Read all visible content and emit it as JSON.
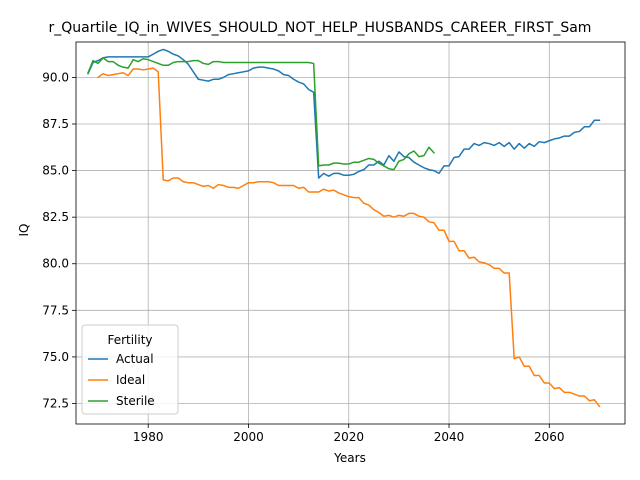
{
  "chart_data": {
    "type": "line",
    "title": "r_Quartile_IQ_in_WIVES_SHOULD_NOT_HELP_HUSBANDS_CAREER_FIRST_Sam",
    "xlabel": "Years",
    "ylabel": "IQ",
    "xlim": [
      1965.6,
      2075.1
    ],
    "ylim": [
      71.4,
      91.9
    ],
    "xticks": [
      1980,
      2000,
      2020,
      2040,
      2060
    ],
    "yticks": [
      72.5,
      75.0,
      77.5,
      80.0,
      82.5,
      85.0,
      87.5,
      90.0
    ],
    "xtick_labels": [
      "1980",
      "2000",
      "2020",
      "2040",
      "2060"
    ],
    "ytick_labels": [
      "72.5",
      "75.0",
      "77.5",
      "80.0",
      "82.5",
      "85.0",
      "87.5",
      "90.0"
    ],
    "grid": true,
    "legend": {
      "title": "Fertility",
      "placement": "lower-left",
      "entries": [
        "Actual",
        "Ideal",
        "Sterile"
      ]
    },
    "series": [
      {
        "name": "Actual",
        "color": "#1f77b4",
        "points": [
          [
            1968,
            90.2
          ],
          [
            1969,
            90.8
          ],
          [
            1970,
            90.9
          ],
          [
            1971,
            91.05
          ],
          [
            1972,
            91.1
          ],
          [
            1973,
            91.1
          ],
          [
            1974,
            91.1
          ],
          [
            1975,
            91.1
          ],
          [
            1976,
            91.1
          ],
          [
            1977,
            91.1
          ],
          [
            1978,
            91.1
          ],
          [
            1979,
            91.1
          ],
          [
            1980,
            91.1
          ],
          [
            1981,
            91.25
          ],
          [
            1982,
            91.4
          ],
          [
            1983,
            91.5
          ],
          [
            1984,
            91.4
          ],
          [
            1985,
            91.25
          ],
          [
            1986,
            91.15
          ],
          [
            1987,
            90.95
          ],
          [
            1988,
            90.7
          ],
          [
            1989,
            90.3
          ],
          [
            1990,
            89.9
          ],
          [
            1991,
            89.85
          ],
          [
            1992,
            89.8
          ],
          [
            1993,
            89.9
          ],
          [
            1994,
            89.9
          ],
          [
            1995,
            90.0
          ],
          [
            1996,
            90.15
          ],
          [
            1997,
            90.2
          ],
          [
            1998,
            90.25
          ],
          [
            1999,
            90.3
          ],
          [
            2000,
            90.35
          ],
          [
            2001,
            90.5
          ],
          [
            2002,
            90.55
          ],
          [
            2003,
            90.55
          ],
          [
            2004,
            90.5
          ],
          [
            2005,
            90.45
          ],
          [
            2006,
            90.35
          ],
          [
            2007,
            90.15
          ],
          [
            2008,
            90.1
          ],
          [
            2009,
            89.9
          ],
          [
            2010,
            89.75
          ],
          [
            2011,
            89.65
          ],
          [
            2012,
            89.35
          ],
          [
            2013,
            89.2
          ],
          [
            2014,
            84.6
          ],
          [
            2015,
            84.85
          ],
          [
            2016,
            84.7
          ],
          [
            2017,
            84.85
          ],
          [
            2018,
            84.85
          ],
          [
            2019,
            84.75
          ],
          [
            2020,
            84.75
          ],
          [
            2021,
            84.8
          ],
          [
            2022,
            84.95
          ],
          [
            2023,
            85.05
          ],
          [
            2024,
            85.3
          ],
          [
            2025,
            85.3
          ],
          [
            2026,
            85.5
          ],
          [
            2027,
            85.3
          ],
          [
            2028,
            85.8
          ],
          [
            2029,
            85.5
          ],
          [
            2030,
            86.0
          ],
          [
            2031,
            85.75
          ],
          [
            2032,
            85.7
          ],
          [
            2033,
            85.45
          ],
          [
            2034,
            85.3
          ],
          [
            2035,
            85.15
          ],
          [
            2036,
            85.05
          ],
          [
            2037,
            85.0
          ],
          [
            2038,
            84.85
          ],
          [
            2039,
            85.25
          ],
          [
            2040,
            85.25
          ],
          [
            2041,
            85.7
          ],
          [
            2042,
            85.75
          ],
          [
            2043,
            86.15
          ],
          [
            2044,
            86.15
          ],
          [
            2045,
            86.45
          ],
          [
            2046,
            86.35
          ],
          [
            2047,
            86.5
          ],
          [
            2048,
            86.45
          ],
          [
            2049,
            86.35
          ],
          [
            2050,
            86.5
          ],
          [
            2051,
            86.3
          ],
          [
            2052,
            86.5
          ],
          [
            2053,
            86.15
          ],
          [
            2054,
            86.45
          ],
          [
            2055,
            86.2
          ],
          [
            2056,
            86.45
          ],
          [
            2057,
            86.3
          ],
          [
            2058,
            86.55
          ],
          [
            2059,
            86.5
          ],
          [
            2060,
            86.6
          ],
          [
            2061,
            86.7
          ],
          [
            2062,
            86.75
          ],
          [
            2063,
            86.85
          ],
          [
            2064,
            86.85
          ],
          [
            2065,
            87.05
          ],
          [
            2066,
            87.1
          ],
          [
            2067,
            87.35
          ],
          [
            2068,
            87.35
          ],
          [
            2069,
            87.7
          ],
          [
            2070,
            87.7
          ]
        ]
      },
      {
        "name": "Ideal",
        "color": "#ff7f0e",
        "points": [
          [
            1970,
            90.0
          ],
          [
            1971,
            90.2
          ],
          [
            1972,
            90.1
          ],
          [
            1973,
            90.15
          ],
          [
            1974,
            90.2
          ],
          [
            1975,
            90.25
          ],
          [
            1976,
            90.1
          ],
          [
            1977,
            90.45
          ],
          [
            1978,
            90.45
          ],
          [
            1979,
            90.4
          ],
          [
            1980,
            90.45
          ],
          [
            1981,
            90.5
          ],
          [
            1982,
            90.3
          ],
          [
            1983,
            84.5
          ],
          [
            1984,
            84.45
          ],
          [
            1985,
            84.6
          ],
          [
            1986,
            84.6
          ],
          [
            1987,
            84.4
          ],
          [
            1988,
            84.35
          ],
          [
            1989,
            84.35
          ],
          [
            1990,
            84.25
          ],
          [
            1991,
            84.15
          ],
          [
            1992,
            84.2
          ],
          [
            1993,
            84.05
          ],
          [
            1994,
            84.25
          ],
          [
            1995,
            84.2
          ],
          [
            1996,
            84.1
          ],
          [
            1997,
            84.1
          ],
          [
            1998,
            84.05
          ],
          [
            1999,
            84.2
          ],
          [
            2000,
            84.35
          ],
          [
            2001,
            84.35
          ],
          [
            2002,
            84.4
          ],
          [
            2003,
            84.4
          ],
          [
            2004,
            84.4
          ],
          [
            2005,
            84.35
          ],
          [
            2006,
            84.2
          ],
          [
            2007,
            84.2
          ],
          [
            2008,
            84.2
          ],
          [
            2009,
            84.2
          ],
          [
            2010,
            84.05
          ],
          [
            2011,
            84.1
          ],
          [
            2012,
            83.85
          ],
          [
            2013,
            83.85
          ],
          [
            2014,
            83.85
          ],
          [
            2015,
            84.0
          ],
          [
            2016,
            83.9
          ],
          [
            2017,
            83.95
          ],
          [
            2018,
            83.8
          ],
          [
            2019,
            83.7
          ],
          [
            2020,
            83.6
          ],
          [
            2021,
            83.55
          ],
          [
            2022,
            83.55
          ],
          [
            2023,
            83.25
          ],
          [
            2024,
            83.15
          ],
          [
            2025,
            82.9
          ],
          [
            2026,
            82.75
          ],
          [
            2027,
            82.55
          ],
          [
            2028,
            82.6
          ],
          [
            2029,
            82.5
          ],
          [
            2030,
            82.6
          ],
          [
            2031,
            82.55
          ],
          [
            2032,
            82.7
          ],
          [
            2033,
            82.7
          ],
          [
            2034,
            82.55
          ],
          [
            2035,
            82.5
          ],
          [
            2036,
            82.25
          ],
          [
            2037,
            82.2
          ],
          [
            2038,
            81.8
          ],
          [
            2039,
            81.8
          ],
          [
            2040,
            81.2
          ],
          [
            2041,
            81.2
          ],
          [
            2042,
            80.7
          ],
          [
            2043,
            80.7
          ],
          [
            2044,
            80.3
          ],
          [
            2045,
            80.35
          ],
          [
            2046,
            80.1
          ],
          [
            2047,
            80.05
          ],
          [
            2048,
            79.95
          ],
          [
            2049,
            79.75
          ],
          [
            2050,
            79.75
          ],
          [
            2051,
            79.5
          ],
          [
            2052,
            79.5
          ],
          [
            2053,
            74.9
          ],
          [
            2054,
            75.0
          ],
          [
            2055,
            74.5
          ],
          [
            2056,
            74.5
          ],
          [
            2057,
            74.0
          ],
          [
            2058,
            74.0
          ],
          [
            2059,
            73.6
          ],
          [
            2060,
            73.6
          ],
          [
            2061,
            73.3
          ],
          [
            2062,
            73.35
          ],
          [
            2063,
            73.1
          ],
          [
            2064,
            73.1
          ],
          [
            2065,
            73.0
          ],
          [
            2066,
            72.9
          ],
          [
            2067,
            72.9
          ],
          [
            2068,
            72.65
          ],
          [
            2069,
            72.7
          ],
          [
            2070,
            72.35
          ]
        ]
      },
      {
        "name": "Sterile",
        "color": "#2ca02c",
        "points": [
          [
            1968,
            90.25
          ],
          [
            1969,
            90.9
          ],
          [
            1970,
            90.75
          ],
          [
            1971,
            91.05
          ],
          [
            1972,
            90.85
          ],
          [
            1973,
            90.85
          ],
          [
            1974,
            90.65
          ],
          [
            1975,
            90.55
          ],
          [
            1976,
            90.5
          ],
          [
            1977,
            90.95
          ],
          [
            1978,
            90.85
          ],
          [
            1979,
            91.0
          ],
          [
            1980,
            90.95
          ],
          [
            1981,
            90.85
          ],
          [
            1982,
            90.75
          ],
          [
            1983,
            90.65
          ],
          [
            1984,
            90.65
          ],
          [
            1985,
            90.8
          ],
          [
            1986,
            90.85
          ],
          [
            1987,
            90.85
          ],
          [
            1988,
            90.85
          ],
          [
            1989,
            90.9
          ],
          [
            1990,
            90.9
          ],
          [
            1991,
            90.75
          ],
          [
            1992,
            90.7
          ],
          [
            1993,
            90.85
          ],
          [
            1994,
            90.85
          ],
          [
            1995,
            90.8
          ],
          [
            1996,
            90.8
          ],
          [
            1997,
            90.8
          ],
          [
            1998,
            90.8
          ],
          [
            1999,
            90.8
          ],
          [
            2000,
            90.8
          ],
          [
            2001,
            90.8
          ],
          [
            2002,
            90.8
          ],
          [
            2003,
            90.8
          ],
          [
            2004,
            90.8
          ],
          [
            2005,
            90.8
          ],
          [
            2006,
            90.8
          ],
          [
            2007,
            90.8
          ],
          [
            2008,
            90.8
          ],
          [
            2009,
            90.8
          ],
          [
            2010,
            90.8
          ],
          [
            2011,
            90.8
          ],
          [
            2012,
            90.8
          ],
          [
            2013,
            90.75
          ],
          [
            2014,
            85.25
          ],
          [
            2015,
            85.3
          ],
          [
            2016,
            85.3
          ],
          [
            2017,
            85.4
          ],
          [
            2018,
            85.4
          ],
          [
            2019,
            85.35
          ],
          [
            2020,
            85.35
          ],
          [
            2021,
            85.45
          ],
          [
            2022,
            85.45
          ],
          [
            2023,
            85.55
          ],
          [
            2024,
            85.65
          ],
          [
            2025,
            85.6
          ],
          [
            2026,
            85.4
          ],
          [
            2027,
            85.25
          ],
          [
            2028,
            85.1
          ],
          [
            2029,
            85.05
          ],
          [
            2030,
            85.5
          ],
          [
            2031,
            85.6
          ],
          [
            2032,
            85.9
          ],
          [
            2033,
            86.05
          ],
          [
            2034,
            85.75
          ],
          [
            2035,
            85.8
          ],
          [
            2036,
            86.25
          ],
          [
            2037,
            85.95
          ]
        ]
      }
    ]
  }
}
